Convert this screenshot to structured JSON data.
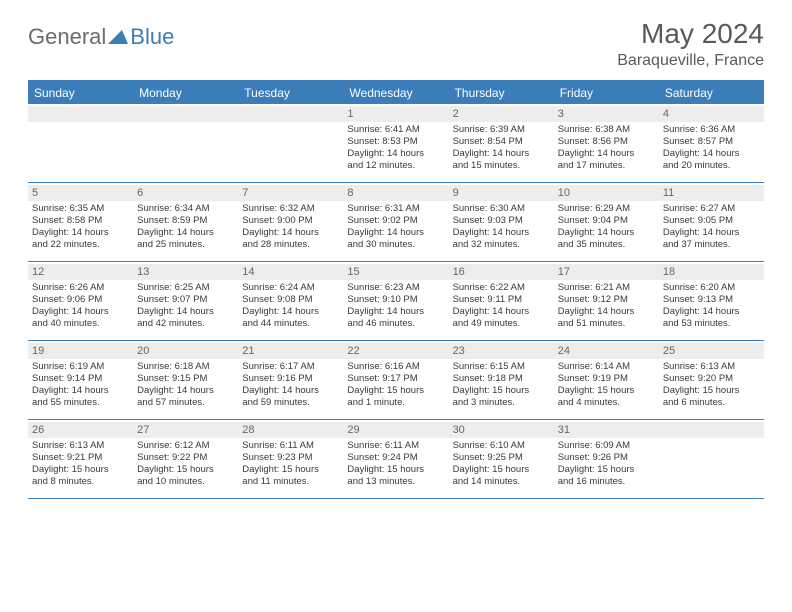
{
  "brand": {
    "part1": "General",
    "part2": "Blue"
  },
  "title": "May 2024",
  "location": "Baraqueville, France",
  "colors": {
    "accent": "#3a7db8",
    "bar": "#ededed",
    "text": "#3a3a3a"
  },
  "dayNames": [
    "Sunday",
    "Monday",
    "Tuesday",
    "Wednesday",
    "Thursday",
    "Friday",
    "Saturday"
  ],
  "weeks": [
    [
      {
        "n": "",
        "sr": "",
        "ss": "",
        "d1": "",
        "d2": ""
      },
      {
        "n": "",
        "sr": "",
        "ss": "",
        "d1": "",
        "d2": ""
      },
      {
        "n": "",
        "sr": "",
        "ss": "",
        "d1": "",
        "d2": ""
      },
      {
        "n": "1",
        "sr": "Sunrise: 6:41 AM",
        "ss": "Sunset: 8:53 PM",
        "d1": "Daylight: 14 hours",
        "d2": "and 12 minutes."
      },
      {
        "n": "2",
        "sr": "Sunrise: 6:39 AM",
        "ss": "Sunset: 8:54 PM",
        "d1": "Daylight: 14 hours",
        "d2": "and 15 minutes."
      },
      {
        "n": "3",
        "sr": "Sunrise: 6:38 AM",
        "ss": "Sunset: 8:56 PM",
        "d1": "Daylight: 14 hours",
        "d2": "and 17 minutes."
      },
      {
        "n": "4",
        "sr": "Sunrise: 6:36 AM",
        "ss": "Sunset: 8:57 PM",
        "d1": "Daylight: 14 hours",
        "d2": "and 20 minutes."
      }
    ],
    [
      {
        "n": "5",
        "sr": "Sunrise: 6:35 AM",
        "ss": "Sunset: 8:58 PM",
        "d1": "Daylight: 14 hours",
        "d2": "and 22 minutes."
      },
      {
        "n": "6",
        "sr": "Sunrise: 6:34 AM",
        "ss": "Sunset: 8:59 PM",
        "d1": "Daylight: 14 hours",
        "d2": "and 25 minutes."
      },
      {
        "n": "7",
        "sr": "Sunrise: 6:32 AM",
        "ss": "Sunset: 9:00 PM",
        "d1": "Daylight: 14 hours",
        "d2": "and 28 minutes."
      },
      {
        "n": "8",
        "sr": "Sunrise: 6:31 AM",
        "ss": "Sunset: 9:02 PM",
        "d1": "Daylight: 14 hours",
        "d2": "and 30 minutes."
      },
      {
        "n": "9",
        "sr": "Sunrise: 6:30 AM",
        "ss": "Sunset: 9:03 PM",
        "d1": "Daylight: 14 hours",
        "d2": "and 32 minutes."
      },
      {
        "n": "10",
        "sr": "Sunrise: 6:29 AM",
        "ss": "Sunset: 9:04 PM",
        "d1": "Daylight: 14 hours",
        "d2": "and 35 minutes."
      },
      {
        "n": "11",
        "sr": "Sunrise: 6:27 AM",
        "ss": "Sunset: 9:05 PM",
        "d1": "Daylight: 14 hours",
        "d2": "and 37 minutes."
      }
    ],
    [
      {
        "n": "12",
        "sr": "Sunrise: 6:26 AM",
        "ss": "Sunset: 9:06 PM",
        "d1": "Daylight: 14 hours",
        "d2": "and 40 minutes."
      },
      {
        "n": "13",
        "sr": "Sunrise: 6:25 AM",
        "ss": "Sunset: 9:07 PM",
        "d1": "Daylight: 14 hours",
        "d2": "and 42 minutes."
      },
      {
        "n": "14",
        "sr": "Sunrise: 6:24 AM",
        "ss": "Sunset: 9:08 PM",
        "d1": "Daylight: 14 hours",
        "d2": "and 44 minutes."
      },
      {
        "n": "15",
        "sr": "Sunrise: 6:23 AM",
        "ss": "Sunset: 9:10 PM",
        "d1": "Daylight: 14 hours",
        "d2": "and 46 minutes."
      },
      {
        "n": "16",
        "sr": "Sunrise: 6:22 AM",
        "ss": "Sunset: 9:11 PM",
        "d1": "Daylight: 14 hours",
        "d2": "and 49 minutes."
      },
      {
        "n": "17",
        "sr": "Sunrise: 6:21 AM",
        "ss": "Sunset: 9:12 PM",
        "d1": "Daylight: 14 hours",
        "d2": "and 51 minutes."
      },
      {
        "n": "18",
        "sr": "Sunrise: 6:20 AM",
        "ss": "Sunset: 9:13 PM",
        "d1": "Daylight: 14 hours",
        "d2": "and 53 minutes."
      }
    ],
    [
      {
        "n": "19",
        "sr": "Sunrise: 6:19 AM",
        "ss": "Sunset: 9:14 PM",
        "d1": "Daylight: 14 hours",
        "d2": "and 55 minutes."
      },
      {
        "n": "20",
        "sr": "Sunrise: 6:18 AM",
        "ss": "Sunset: 9:15 PM",
        "d1": "Daylight: 14 hours",
        "d2": "and 57 minutes."
      },
      {
        "n": "21",
        "sr": "Sunrise: 6:17 AM",
        "ss": "Sunset: 9:16 PM",
        "d1": "Daylight: 14 hours",
        "d2": "and 59 minutes."
      },
      {
        "n": "22",
        "sr": "Sunrise: 6:16 AM",
        "ss": "Sunset: 9:17 PM",
        "d1": "Daylight: 15 hours",
        "d2": "and 1 minute."
      },
      {
        "n": "23",
        "sr": "Sunrise: 6:15 AM",
        "ss": "Sunset: 9:18 PM",
        "d1": "Daylight: 15 hours",
        "d2": "and 3 minutes."
      },
      {
        "n": "24",
        "sr": "Sunrise: 6:14 AM",
        "ss": "Sunset: 9:19 PM",
        "d1": "Daylight: 15 hours",
        "d2": "and 4 minutes."
      },
      {
        "n": "25",
        "sr": "Sunrise: 6:13 AM",
        "ss": "Sunset: 9:20 PM",
        "d1": "Daylight: 15 hours",
        "d2": "and 6 minutes."
      }
    ],
    [
      {
        "n": "26",
        "sr": "Sunrise: 6:13 AM",
        "ss": "Sunset: 9:21 PM",
        "d1": "Daylight: 15 hours",
        "d2": "and 8 minutes."
      },
      {
        "n": "27",
        "sr": "Sunrise: 6:12 AM",
        "ss": "Sunset: 9:22 PM",
        "d1": "Daylight: 15 hours",
        "d2": "and 10 minutes."
      },
      {
        "n": "28",
        "sr": "Sunrise: 6:11 AM",
        "ss": "Sunset: 9:23 PM",
        "d1": "Daylight: 15 hours",
        "d2": "and 11 minutes."
      },
      {
        "n": "29",
        "sr": "Sunrise: 6:11 AM",
        "ss": "Sunset: 9:24 PM",
        "d1": "Daylight: 15 hours",
        "d2": "and 13 minutes."
      },
      {
        "n": "30",
        "sr": "Sunrise: 6:10 AM",
        "ss": "Sunset: 9:25 PM",
        "d1": "Daylight: 15 hours",
        "d2": "and 14 minutes."
      },
      {
        "n": "31",
        "sr": "Sunrise: 6:09 AM",
        "ss": "Sunset: 9:26 PM",
        "d1": "Daylight: 15 hours",
        "d2": "and 16 minutes."
      },
      {
        "n": "",
        "sr": "",
        "ss": "",
        "d1": "",
        "d2": ""
      }
    ]
  ]
}
